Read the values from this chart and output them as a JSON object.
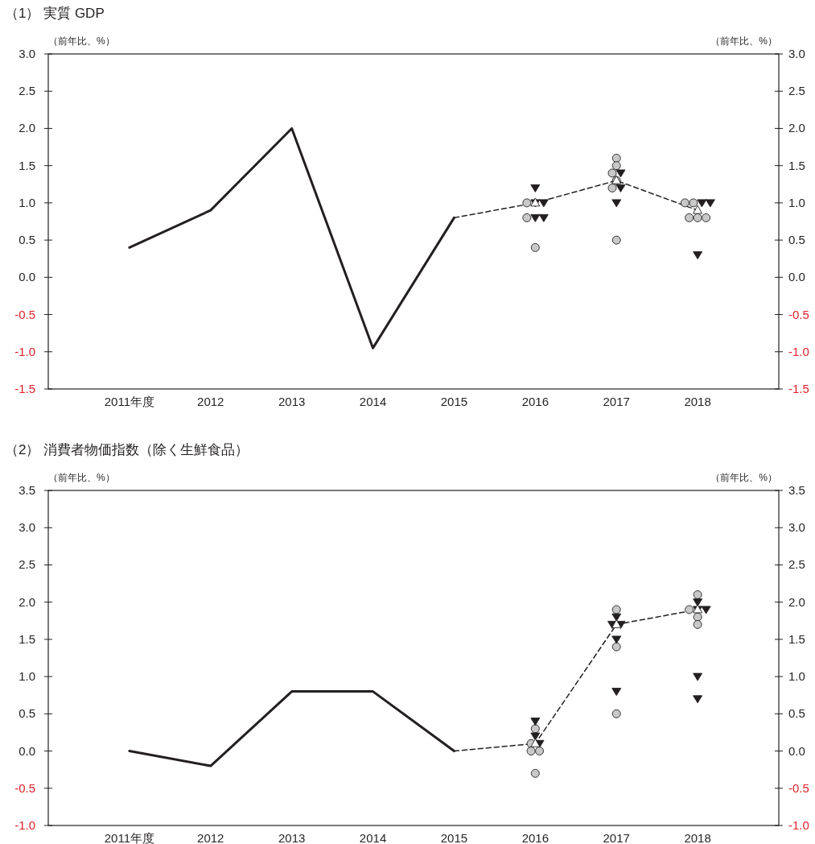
{
  "chart_data": [
    {
      "type": "line",
      "title": "（1） 実質 GDP",
      "ylabel": "（前年比、%）",
      "y2label": "（前年比、%）",
      "categories": [
        "2011年度",
        "2012",
        "2013",
        "2014",
        "2015",
        "2016",
        "2017",
        "2018"
      ],
      "ylim": [
        -1.5,
        3.0
      ],
      "yticks": [
        {
          "value": -1.5,
          "label": "-1.5"
        },
        {
          "value": -1.0,
          "label": "-1.0"
        },
        {
          "value": -0.5,
          "label": "-0.5"
        },
        {
          "value": 0,
          "label": "0.0"
        },
        {
          "value": 0.5,
          "label": "0.5"
        },
        {
          "value": 1.0,
          "label": "1.0"
        },
        {
          "value": 1.5,
          "label": "1.5"
        },
        {
          "value": 2.0,
          "label": "2.0"
        },
        {
          "value": 2.5,
          "label": "2.5"
        },
        {
          "value": 3.0,
          "label": "3.0"
        }
      ],
      "y2lim": [
        -1.5,
        3.0
      ],
      "y2ticks": [
        {
          "value": -1.5,
          "label": "-1.5"
        },
        {
          "value": -1.0,
          "label": "-1.0"
        },
        {
          "value": -0.5,
          "label": "-0.5"
        },
        {
          "value": 0,
          "label": "0.0"
        },
        {
          "value": 0.5,
          "label": "0.5"
        },
        {
          "value": 1.0,
          "label": "1.0"
        },
        {
          "value": 1.5,
          "label": "1.5"
        },
        {
          "value": 2.0,
          "label": "2.0"
        },
        {
          "value": 2.5,
          "label": "2.5"
        },
        {
          "value": 3.0,
          "label": "3.0"
        }
      ],
      "series": [
        {
          "color": "#231f20",
          "line_style": "solid",
          "values": [
            0.4,
            0.9,
            2.0,
            -0.95,
            0.8,
            null,
            null,
            null
          ]
        },
        {
          "color": "#231f20",
          "line_style": "dashed",
          "marker": "triangle",
          "values": [
            null,
            null,
            null,
            null,
            0.8,
            1.0,
            1.3,
            0.9
          ]
        },
        {
          "type": "scatter",
          "color": "#c8c8c8",
          "marker": "circle",
          "values": [
            null,
            null,
            null,
            null,
            null,
            1.0,
            1.6,
            1.0
          ]
        },
        {
          "type": "scatter",
          "color": "#c8c8c8",
          "marker": "circle",
          "values": [
            null,
            null,
            null,
            null,
            null,
            0.8,
            1.5,
            1.0
          ]
        },
        {
          "type": "scatter",
          "color": "#c8c8c8",
          "marker": "circle",
          "values": [
            null,
            null,
            null,
            null,
            null,
            0.4,
            1.4,
            0.8
          ]
        },
        {
          "type": "scatter",
          "color": "#c8c8c8",
          "marker": "circle",
          "values": [
            null,
            null,
            null,
            null,
            null,
            null,
            1.3,
            0.8
          ]
        },
        {
          "type": "scatter",
          "color": "#c8c8c8",
          "marker": "circle",
          "values": [
            null,
            null,
            null,
            null,
            null,
            null,
            1.2,
            0.8
          ]
        },
        {
          "type": "scatter",
          "color": "#c8c8c8",
          "marker": "circle",
          "values": [
            null,
            null,
            null,
            null,
            null,
            null,
            0.5,
            null
          ]
        },
        {
          "type": "scatter",
          "color": "#231f20",
          "marker": "triangle-down",
          "values": [
            null,
            null,
            null,
            null,
            null,
            1.2,
            1.4,
            1.0
          ]
        },
        {
          "type": "scatter",
          "color": "#231f20",
          "marker": "triangle-down",
          "values": [
            null,
            null,
            null,
            null,
            null,
            1.0,
            1.2,
            1.0
          ]
        },
        {
          "type": "scatter",
          "color": "#231f20",
          "marker": "triangle-down",
          "values": [
            null,
            null,
            null,
            null,
            null,
            1.0,
            1.0,
            0.3
          ]
        },
        {
          "type": "scatter",
          "color": "#231f20",
          "marker": "triangle-down",
          "values": [
            null,
            null,
            null,
            null,
            null,
            0.8,
            null,
            null
          ]
        },
        {
          "type": "scatter",
          "color": "#231f20",
          "marker": "triangle-down",
          "values": [
            null,
            null,
            null,
            null,
            null,
            0.8,
            null,
            null
          ]
        }
      ]
    },
    {
      "type": "line",
      "title": "（2） 消費者物価指数（除く生鮮食品）",
      "ylabel": "（前年比、%）",
      "y2label": "（前年比、%）",
      "categories": [
        "2011年度",
        "2012",
        "2013",
        "2014",
        "2015",
        "2016",
        "2017",
        "2018"
      ],
      "ylim": [
        -1.0,
        3.5
      ],
      "yticks": [
        {
          "value": -1.0,
          "label": "-1.0"
        },
        {
          "value": -0.5,
          "label": "-0.5"
        },
        {
          "value": 0,
          "label": "0.0"
        },
        {
          "value": 0.5,
          "label": "0.5"
        },
        {
          "value": 1.0,
          "label": "1.0"
        },
        {
          "value": 1.5,
          "label": "1.5"
        },
        {
          "value": 2.0,
          "label": "2.0"
        },
        {
          "value": 2.5,
          "label": "2.5"
        },
        {
          "value": 3.0,
          "label": "3.0"
        },
        {
          "value": 3.5,
          "label": "3.5"
        }
      ],
      "y2lim": [
        -1.0,
        3.5
      ],
      "y2ticks": [
        {
          "value": -1.0,
          "label": "-1.0"
        },
        {
          "value": -0.5,
          "label": "-0.5"
        },
        {
          "value": 0,
          "label": "0.0"
        },
        {
          "value": 0.5,
          "label": "0.5"
        },
        {
          "value": 1.0,
          "label": "1.0"
        },
        {
          "value": 1.5,
          "label": "1.5"
        },
        {
          "value": 2.0,
          "label": "2.0"
        },
        {
          "value": 2.5,
          "label": "2.5"
        },
        {
          "value": 3.0,
          "label": "3.0"
        },
        {
          "value": 3.5,
          "label": "3.5"
        }
      ],
      "series": [
        {
          "color": "#231f20",
          "line_style": "solid",
          "values": [
            0.0,
            -0.2,
            0.8,
            0.8,
            0.0,
            null,
            null,
            null
          ]
        },
        {
          "color": "#231f20",
          "line_style": "dashed",
          "marker": "triangle",
          "values": [
            null,
            null,
            null,
            null,
            0.0,
            0.1,
            1.7,
            1.9
          ]
        },
        {
          "type": "scatter",
          "color": "#c8c8c8",
          "marker": "circle",
          "values": [
            null,
            null,
            null,
            null,
            null,
            0.3,
            1.9,
            2.1
          ]
        },
        {
          "type": "scatter",
          "color": "#c8c8c8",
          "marker": "circle",
          "values": [
            null,
            null,
            null,
            null,
            null,
            0.1,
            1.4,
            1.9
          ]
        },
        {
          "type": "scatter",
          "color": "#c8c8c8",
          "marker": "circle",
          "values": [
            null,
            null,
            null,
            null,
            null,
            0.0,
            0.5,
            1.8
          ]
        },
        {
          "type": "scatter",
          "color": "#c8c8c8",
          "marker": "circle",
          "values": [
            null,
            null,
            null,
            null,
            null,
            0.0,
            null,
            1.7
          ]
        },
        {
          "type": "scatter",
          "color": "#c8c8c8",
          "marker": "circle",
          "values": [
            null,
            null,
            null,
            null,
            null,
            -0.3,
            null,
            null
          ]
        },
        {
          "type": "scatter",
          "color": "#231f20",
          "marker": "triangle-down",
          "values": [
            null,
            null,
            null,
            null,
            null,
            0.4,
            1.8,
            2.0
          ]
        },
        {
          "type": "scatter",
          "color": "#231f20",
          "marker": "triangle-down",
          "values": [
            null,
            null,
            null,
            null,
            null,
            0.2,
            1.7,
            1.9
          ]
        },
        {
          "type": "scatter",
          "color": "#231f20",
          "marker": "triangle-down",
          "values": [
            null,
            null,
            null,
            null,
            null,
            0.1,
            1.7,
            1.9
          ]
        },
        {
          "type": "scatter",
          "color": "#231f20",
          "marker": "triangle-down",
          "values": [
            null,
            null,
            null,
            null,
            null,
            null,
            1.5,
            1.0
          ]
        },
        {
          "type": "scatter",
          "color": "#231f20",
          "marker": "triangle-down",
          "values": [
            null,
            null,
            null,
            null,
            null,
            null,
            0.8,
            0.7
          ]
        }
      ]
    }
  ]
}
